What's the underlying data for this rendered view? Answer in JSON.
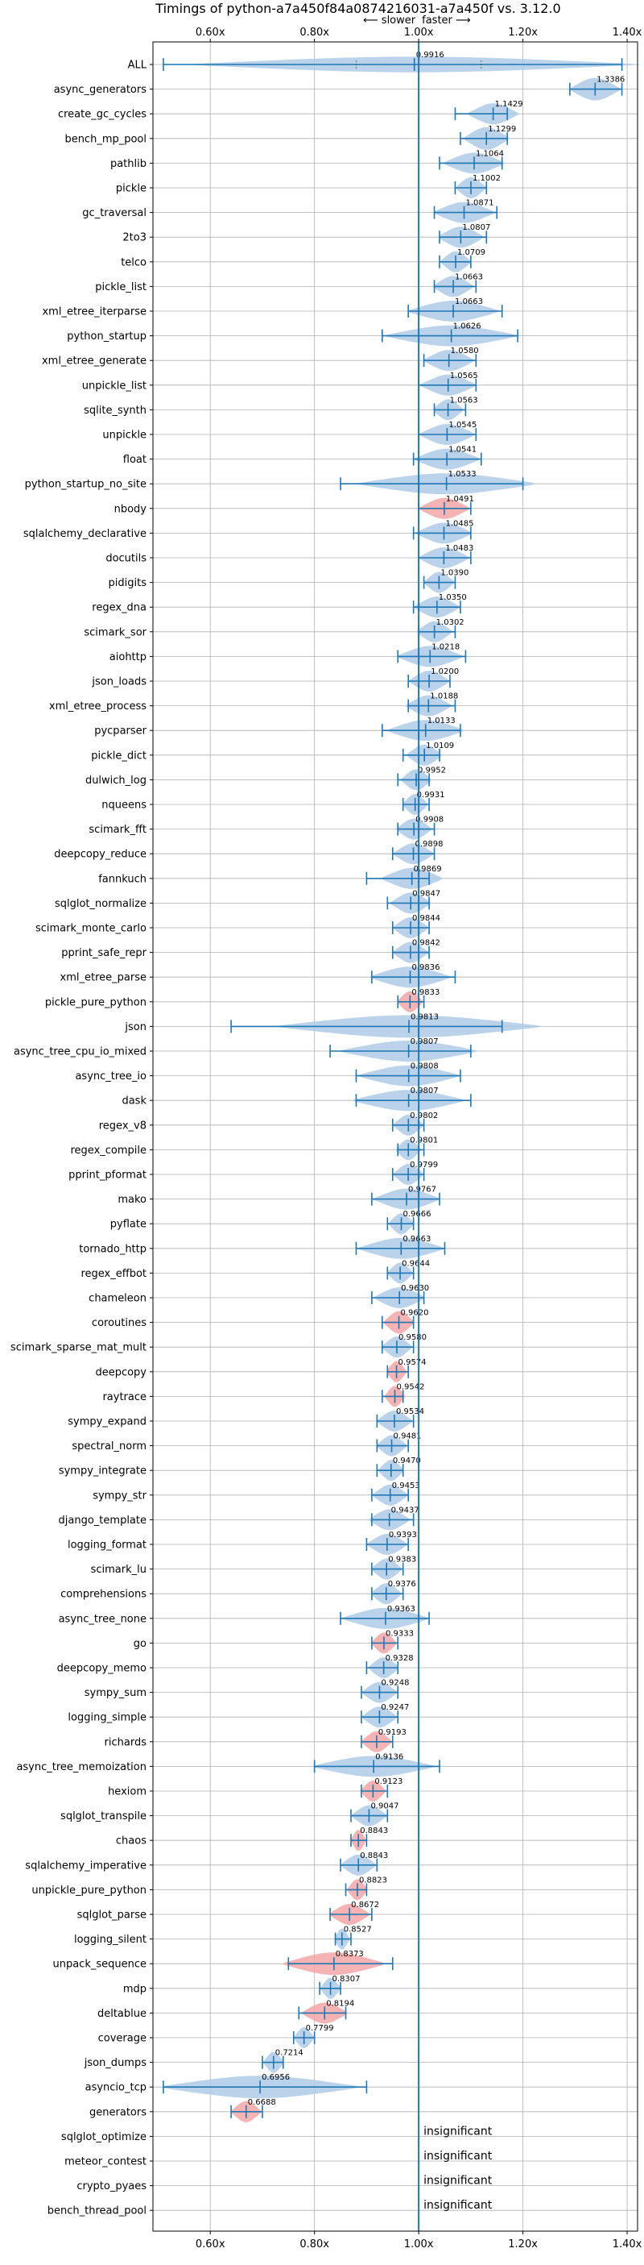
{
  "chart_data": {
    "type": "violin",
    "title": "Timings of python-a7a450f84a0874216031-a7a450f vs. 3.12.0",
    "direction_slower": "⟵ slower",
    "direction_faster": "faster ⟶",
    "xlim": [
      0.49,
      1.42
    ],
    "xticks": [
      0.6,
      0.8,
      1.0,
      1.2,
      1.4
    ],
    "xtick_labels": [
      "0.60x",
      "0.80x",
      "1.00x",
      "1.20x",
      "1.40x"
    ],
    "reference_line": 1.0,
    "grid": true,
    "colors": {
      "faster": "#aecbe8",
      "slower": "#f4a6a6",
      "line": "#1f77b4",
      "grid": "#b0b0b0"
    },
    "insignificant_text": "insignificant",
    "benchmarks": [
      {
        "name": "ALL",
        "value": 0.9916,
        "label": "0.9916",
        "lo": 0.51,
        "hi": 1.39,
        "q1": 0.88,
        "q3": 1.12,
        "width": 0.3,
        "color": "blue"
      },
      {
        "name": "async_generators",
        "value": 1.3386,
        "label": "1.3386",
        "lo": 1.29,
        "hi": 1.39,
        "width": 0.45,
        "color": "blue"
      },
      {
        "name": "create_gc_cycles",
        "value": 1.1429,
        "label": "1.1429",
        "lo": 1.07,
        "hi": 1.17,
        "width": 0.4,
        "color": "blue"
      },
      {
        "name": "bench_mp_pool",
        "value": 1.1299,
        "label": "1.1299",
        "lo": 1.08,
        "hi": 1.17,
        "width": 0.45,
        "color": "blue"
      },
      {
        "name": "pathlib",
        "value": 1.1064,
        "label": "1.1064",
        "lo": 1.04,
        "hi": 1.16,
        "width": 0.4,
        "color": "blue"
      },
      {
        "name": "pickle",
        "value": 1.1002,
        "label": "1.1002",
        "lo": 1.07,
        "hi": 1.13,
        "width": 0.4,
        "color": "blue"
      },
      {
        "name": "gc_traversal",
        "value": 1.0871,
        "label": "1.0871",
        "lo": 1.03,
        "hi": 1.15,
        "width": 0.4,
        "color": "blue"
      },
      {
        "name": "2to3",
        "value": 1.0807,
        "label": "1.0807",
        "lo": 1.04,
        "hi": 1.13,
        "width": 0.4,
        "color": "blue"
      },
      {
        "name": "telco",
        "value": 1.0709,
        "label": "1.0709",
        "lo": 1.04,
        "hi": 1.1,
        "width": 0.4,
        "color": "blue"
      },
      {
        "name": "pickle_list",
        "value": 1.0663,
        "label": "1.0663",
        "lo": 1.03,
        "hi": 1.11,
        "width": 0.4,
        "color": "blue"
      },
      {
        "name": "xml_etree_iterparse",
        "value": 1.0663,
        "label": "1.0663",
        "lo": 0.98,
        "hi": 1.16,
        "width": 0.4,
        "color": "blue"
      },
      {
        "name": "python_startup",
        "value": 1.0626,
        "label": "1.0626",
        "lo": 0.93,
        "hi": 1.19,
        "width": 0.4,
        "color": "blue"
      },
      {
        "name": "xml_etree_generate",
        "value": 1.058,
        "label": "1.0580",
        "lo": 1.01,
        "hi": 1.11,
        "width": 0.4,
        "color": "blue"
      },
      {
        "name": "unpickle_list",
        "value": 1.0565,
        "label": "1.0565",
        "lo": 1.0,
        "hi": 1.11,
        "width": 0.4,
        "color": "blue"
      },
      {
        "name": "sqlite_synth",
        "value": 1.0563,
        "label": "1.0563",
        "lo": 1.03,
        "hi": 1.09,
        "width": 0.4,
        "color": "blue"
      },
      {
        "name": "unpickle",
        "value": 1.0545,
        "label": "1.0545",
        "lo": 1.0,
        "hi": 1.11,
        "width": 0.4,
        "color": "blue"
      },
      {
        "name": "float",
        "value": 1.0541,
        "label": "1.0541",
        "lo": 0.99,
        "hi": 1.12,
        "width": 0.4,
        "color": "blue"
      },
      {
        "name": "python_startup_no_site",
        "value": 1.0533,
        "label": "1.0533",
        "lo": 0.85,
        "hi": 1.2,
        "width": 0.4,
        "color": "blue"
      },
      {
        "name": "nbody",
        "value": 1.0491,
        "label": "1.0491",
        "lo": 1.0,
        "hi": 1.1,
        "width": 0.4,
        "color": "red"
      },
      {
        "name": "sqlalchemy_declarative",
        "value": 1.0485,
        "label": "1.0485",
        "lo": 0.99,
        "hi": 1.1,
        "width": 0.4,
        "color": "blue"
      },
      {
        "name": "docutils",
        "value": 1.0483,
        "label": "1.0483",
        "lo": 1.0,
        "hi": 1.1,
        "width": 0.4,
        "color": "blue"
      },
      {
        "name": "pidigits",
        "value": 1.039,
        "label": "1.0390",
        "lo": 1.01,
        "hi": 1.07,
        "width": 0.4,
        "color": "blue"
      },
      {
        "name": "regex_dna",
        "value": 1.035,
        "label": "1.0350",
        "lo": 0.99,
        "hi": 1.08,
        "width": 0.4,
        "color": "blue"
      },
      {
        "name": "scimark_sor",
        "value": 1.0302,
        "label": "1.0302",
        "lo": 1.0,
        "hi": 1.07,
        "width": 0.4,
        "color": "blue"
      },
      {
        "name": "aiohttp",
        "value": 1.0218,
        "label": "1.0218",
        "lo": 0.96,
        "hi": 1.09,
        "width": 0.4,
        "color": "blue"
      },
      {
        "name": "json_loads",
        "value": 1.02,
        "label": "1.0200",
        "lo": 0.98,
        "hi": 1.06,
        "width": 0.4,
        "color": "blue"
      },
      {
        "name": "xml_etree_process",
        "value": 1.0188,
        "label": "1.0188",
        "lo": 0.98,
        "hi": 1.07,
        "width": 0.4,
        "color": "blue"
      },
      {
        "name": "pycparser",
        "value": 1.0133,
        "label": "1.0133",
        "lo": 0.93,
        "hi": 1.08,
        "width": 0.4,
        "color": "blue"
      },
      {
        "name": "pickle_dict",
        "value": 1.0109,
        "label": "1.0109",
        "lo": 0.97,
        "hi": 1.04,
        "width": 0.4,
        "color": "blue"
      },
      {
        "name": "dulwich_log",
        "value": 0.9952,
        "label": "0.9952",
        "lo": 0.96,
        "hi": 1.02,
        "width": 0.4,
        "color": "blue"
      },
      {
        "name": "nqueens",
        "value": 0.9931,
        "label": "0.9931",
        "lo": 0.97,
        "hi": 1.02,
        "width": 0.4,
        "color": "blue"
      },
      {
        "name": "scimark_fft",
        "value": 0.9908,
        "label": "0.9908",
        "lo": 0.96,
        "hi": 1.03,
        "width": 0.4,
        "color": "blue"
      },
      {
        "name": "deepcopy_reduce",
        "value": 0.9898,
        "label": "0.9898",
        "lo": 0.95,
        "hi": 1.03,
        "width": 0.4,
        "color": "blue"
      },
      {
        "name": "fannkuch",
        "value": 0.9869,
        "label": "0.9869",
        "lo": 0.9,
        "hi": 1.02,
        "width": 0.4,
        "color": "blue"
      },
      {
        "name": "sqlglot_normalize",
        "value": 0.9847,
        "label": "0.9847",
        "lo": 0.94,
        "hi": 1.02,
        "width": 0.4,
        "color": "blue"
      },
      {
        "name": "scimark_monte_carlo",
        "value": 0.9844,
        "label": "0.9844",
        "lo": 0.95,
        "hi": 1.02,
        "width": 0.4,
        "color": "blue"
      },
      {
        "name": "pprint_safe_repr",
        "value": 0.9842,
        "label": "0.9842",
        "lo": 0.95,
        "hi": 1.02,
        "width": 0.4,
        "color": "blue"
      },
      {
        "name": "xml_etree_parse",
        "value": 0.9836,
        "label": "0.9836",
        "lo": 0.91,
        "hi": 1.07,
        "width": 0.4,
        "color": "blue"
      },
      {
        "name": "pickle_pure_python",
        "value": 0.9833,
        "label": "0.9833",
        "lo": 0.96,
        "hi": 1.01,
        "width": 0.4,
        "color": "red"
      },
      {
        "name": "json",
        "value": 0.9813,
        "label": "0.9813",
        "lo": 0.64,
        "hi": 1.16,
        "width": 0.45,
        "color": "blue"
      },
      {
        "name": "async_tree_cpu_io_mixed",
        "value": 0.9807,
        "label": "0.9807",
        "lo": 0.83,
        "hi": 1.1,
        "width": 0.4,
        "color": "blue"
      },
      {
        "name": "async_tree_io",
        "value": 0.9808,
        "label": "0.9808",
        "lo": 0.88,
        "hi": 1.08,
        "width": 0.4,
        "color": "blue"
      },
      {
        "name": "dask",
        "value": 0.9807,
        "label": "0.9807",
        "lo": 0.88,
        "hi": 1.1,
        "width": 0.4,
        "color": "blue"
      },
      {
        "name": "regex_v8",
        "value": 0.9802,
        "label": "0.9802",
        "lo": 0.95,
        "hi": 1.01,
        "width": 0.4,
        "color": "blue"
      },
      {
        "name": "regex_compile",
        "value": 0.9801,
        "label": "0.9801",
        "lo": 0.96,
        "hi": 1.01,
        "width": 0.4,
        "color": "blue"
      },
      {
        "name": "pprint_pformat",
        "value": 0.9799,
        "label": "0.9799",
        "lo": 0.95,
        "hi": 1.01,
        "width": 0.4,
        "color": "blue"
      },
      {
        "name": "mako",
        "value": 0.9767,
        "label": "0.9767",
        "lo": 0.91,
        "hi": 1.04,
        "width": 0.4,
        "color": "blue"
      },
      {
        "name": "pyflate",
        "value": 0.9666,
        "label": "0.9666",
        "lo": 0.94,
        "hi": 0.99,
        "width": 0.4,
        "color": "blue"
      },
      {
        "name": "tornado_http",
        "value": 0.9663,
        "label": "0.9663",
        "lo": 0.88,
        "hi": 1.05,
        "width": 0.4,
        "color": "blue"
      },
      {
        "name": "regex_effbot",
        "value": 0.9644,
        "label": "0.9644",
        "lo": 0.94,
        "hi": 0.99,
        "width": 0.4,
        "color": "blue"
      },
      {
        "name": "chameleon",
        "value": 0.963,
        "label": "0.9630",
        "lo": 0.91,
        "hi": 1.01,
        "width": 0.4,
        "color": "blue"
      },
      {
        "name": "coroutines",
        "value": 0.962,
        "label": "0.9620",
        "lo": 0.93,
        "hi": 0.99,
        "width": 0.45,
        "color": "red"
      },
      {
        "name": "scimark_sparse_mat_mult",
        "value": 0.958,
        "label": "0.9580",
        "lo": 0.93,
        "hi": 0.99,
        "width": 0.4,
        "color": "blue"
      },
      {
        "name": "deepcopy",
        "value": 0.9574,
        "label": "0.9574",
        "lo": 0.94,
        "hi": 0.98,
        "width": 0.4,
        "color": "red"
      },
      {
        "name": "raytrace",
        "value": 0.9542,
        "label": "0.9542",
        "lo": 0.93,
        "hi": 0.97,
        "width": 0.4,
        "color": "red"
      },
      {
        "name": "sympy_expand",
        "value": 0.9534,
        "label": "0.9534",
        "lo": 0.92,
        "hi": 0.99,
        "width": 0.4,
        "color": "blue"
      },
      {
        "name": "spectral_norm",
        "value": 0.9481,
        "label": "0.9481",
        "lo": 0.92,
        "hi": 0.98,
        "width": 0.4,
        "color": "blue"
      },
      {
        "name": "sympy_integrate",
        "value": 0.947,
        "label": "0.9470",
        "lo": 0.92,
        "hi": 0.97,
        "width": 0.4,
        "color": "blue"
      },
      {
        "name": "sympy_str",
        "value": 0.9453,
        "label": "0.9453",
        "lo": 0.91,
        "hi": 0.98,
        "width": 0.4,
        "color": "blue"
      },
      {
        "name": "django_template",
        "value": 0.9437,
        "label": "0.9437",
        "lo": 0.91,
        "hi": 0.99,
        "width": 0.4,
        "color": "blue"
      },
      {
        "name": "logging_format",
        "value": 0.9393,
        "label": "0.9393",
        "lo": 0.9,
        "hi": 0.98,
        "width": 0.4,
        "color": "blue"
      },
      {
        "name": "scimark_lu",
        "value": 0.9383,
        "label": "0.9383",
        "lo": 0.91,
        "hi": 0.97,
        "width": 0.4,
        "color": "blue"
      },
      {
        "name": "comprehensions",
        "value": 0.9376,
        "label": "0.9376",
        "lo": 0.91,
        "hi": 0.97,
        "width": 0.4,
        "color": "blue"
      },
      {
        "name": "async_tree_none",
        "value": 0.9363,
        "label": "0.9363",
        "lo": 0.85,
        "hi": 1.02,
        "width": 0.4,
        "color": "blue"
      },
      {
        "name": "go",
        "value": 0.9333,
        "label": "0.9333",
        "lo": 0.91,
        "hi": 0.96,
        "width": 0.4,
        "color": "red"
      },
      {
        "name": "deepcopy_memo",
        "value": 0.9328,
        "label": "0.9328",
        "lo": 0.9,
        "hi": 0.96,
        "width": 0.4,
        "color": "blue"
      },
      {
        "name": "sympy_sum",
        "value": 0.9248,
        "label": "0.9248",
        "lo": 0.89,
        "hi": 0.96,
        "width": 0.4,
        "color": "blue"
      },
      {
        "name": "logging_simple",
        "value": 0.9247,
        "label": "0.9247",
        "lo": 0.89,
        "hi": 0.96,
        "width": 0.4,
        "color": "blue"
      },
      {
        "name": "richards",
        "value": 0.9193,
        "label": "0.9193",
        "lo": 0.89,
        "hi": 0.95,
        "width": 0.4,
        "color": "red"
      },
      {
        "name": "async_tree_memoization",
        "value": 0.9136,
        "label": "0.9136",
        "lo": 0.8,
        "hi": 1.04,
        "width": 0.4,
        "color": "blue"
      },
      {
        "name": "hexiom",
        "value": 0.9123,
        "label": "0.9123",
        "lo": 0.89,
        "hi": 0.94,
        "width": 0.4,
        "color": "red"
      },
      {
        "name": "sqlglot_transpile",
        "value": 0.9047,
        "label": "0.9047",
        "lo": 0.87,
        "hi": 0.94,
        "width": 0.4,
        "color": "blue"
      },
      {
        "name": "chaos",
        "value": 0.8843,
        "label": "0.8843",
        "lo": 0.87,
        "hi": 0.9,
        "width": 0.4,
        "color": "red"
      },
      {
        "name": "sqlalchemy_imperative",
        "value": 0.8843,
        "label": "0.8843",
        "lo": 0.85,
        "hi": 0.92,
        "width": 0.4,
        "color": "blue"
      },
      {
        "name": "unpickle_pure_python",
        "value": 0.8823,
        "label": "0.8823",
        "lo": 0.86,
        "hi": 0.9,
        "width": 0.4,
        "color": "red"
      },
      {
        "name": "sqlglot_parse",
        "value": 0.8672,
        "label": "0.8672",
        "lo": 0.83,
        "hi": 0.91,
        "width": 0.4,
        "color": "red"
      },
      {
        "name": "logging_silent",
        "value": 0.8527,
        "label": "0.8527",
        "lo": 0.84,
        "hi": 0.87,
        "width": 0.4,
        "color": "blue"
      },
      {
        "name": "unpack_sequence",
        "value": 0.8373,
        "label": "0.8373",
        "lo": 0.75,
        "hi": 0.95,
        "width": 0.45,
        "color": "red"
      },
      {
        "name": "mdp",
        "value": 0.8307,
        "label": "0.8307",
        "lo": 0.81,
        "hi": 0.85,
        "width": 0.4,
        "color": "blue"
      },
      {
        "name": "deltablue",
        "value": 0.8194,
        "label": "0.8194",
        "lo": 0.77,
        "hi": 0.86,
        "width": 0.4,
        "color": "red"
      },
      {
        "name": "coverage",
        "value": 0.7799,
        "label": "0.7799",
        "lo": 0.76,
        "hi": 0.8,
        "width": 0.4,
        "color": "blue"
      },
      {
        "name": "json_dumps",
        "value": 0.7214,
        "label": "0.7214",
        "lo": 0.7,
        "hi": 0.74,
        "width": 0.4,
        "color": "blue"
      },
      {
        "name": "asyncio_tcp",
        "value": 0.6956,
        "label": "0.6956",
        "lo": 0.51,
        "hi": 0.9,
        "width": 0.45,
        "color": "blue"
      },
      {
        "name": "generators",
        "value": 0.6688,
        "label": "0.6688",
        "lo": 0.64,
        "hi": 0.7,
        "width": 0.4,
        "color": "red"
      },
      {
        "name": "sqlglot_optimize",
        "insignificant": true
      },
      {
        "name": "meteor_contest",
        "insignificant": true
      },
      {
        "name": "crypto_pyaes",
        "insignificant": true
      },
      {
        "name": "bench_thread_pool",
        "insignificant": true
      }
    ]
  }
}
